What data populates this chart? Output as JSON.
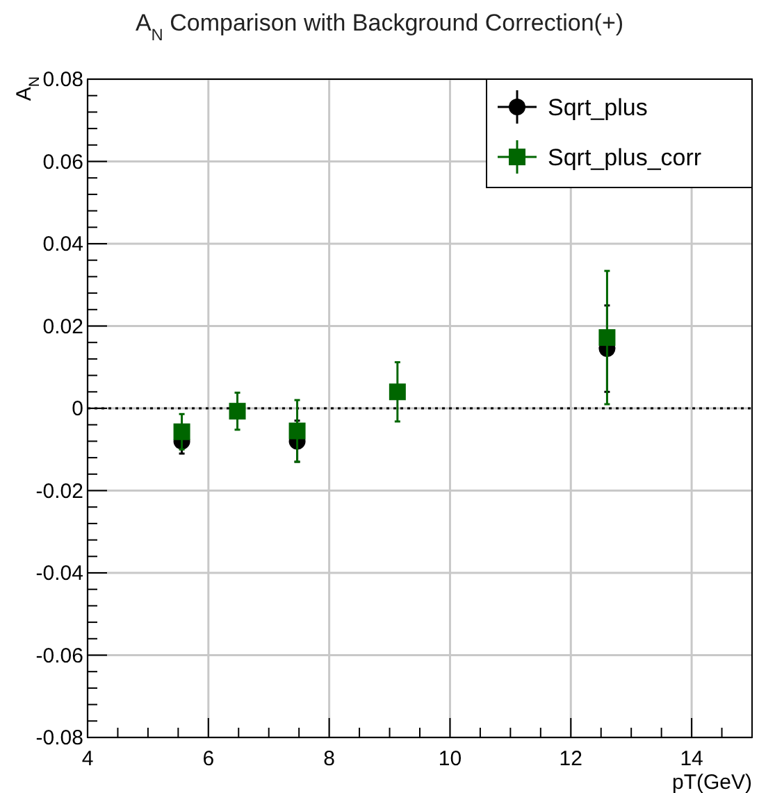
{
  "chart_data": {
    "type": "scatter",
    "title": "A$_{N}$ Comparison with Background Correction(+)",
    "xlabel": "pT(GeV)",
    "ylabel": "A$_{N}$",
    "x": [
      5.56,
      6.48,
      7.47,
      9.13,
      12.6
    ],
    "series": [
      {
        "name": "Sqrt_plus",
        "color": "#000000",
        "marker": "circle",
        "values": [
          -0.008,
          null,
          -0.008,
          null,
          0.0145
        ],
        "errors": [
          0.003,
          null,
          0.005,
          null,
          0.0105
        ]
      },
      {
        "name": "Sqrt_plus_corr",
        "color": "#006600",
        "marker": "square",
        "values": [
          -0.0057,
          -0.0007,
          -0.0055,
          0.004,
          0.0172
        ],
        "errors": [
          0.0043,
          0.0045,
          0.0075,
          0.0072,
          0.0162
        ]
      }
    ],
    "xlim": [
      4,
      15
    ],
    "ylim": [
      -0.08,
      0.08
    ],
    "xticks": [
      4,
      {
        "value": 4.5,
        "label": null
      },
      6,
      {
        "value": 5,
        "label": null
      },
      {
        "value": 5.5,
        "label": null
      },
      {
        "value": 6.5,
        "label": null
      },
      {
        "value": 7,
        "label": null
      },
      {
        "value": 7.5,
        "label": null
      },
      8,
      {
        "value": 8.5,
        "label": null
      },
      {
        "value": 9,
        "label": null
      },
      {
        "value": 9.5,
        "label": null
      },
      10,
      {
        "value": 10.5,
        "label": null
      },
      {
        "value": 11,
        "label": null
      },
      {
        "value": 11.5,
        "label": null
      },
      12,
      {
        "value": 12.5,
        "label": null
      },
      {
        "value": 13,
        "label": null
      },
      {
        "value": 13.5,
        "label": null
      },
      14,
      {
        "value": 14.5,
        "label": null
      }
    ],
    "yticks": [
      -0.08,
      -0.06,
      -0.04,
      -0.02,
      0,
      0.02,
      0.04,
      0.06,
      0.08,
      {
        "value": -0.076,
        "label": null
      },
      {
        "value": -0.072,
        "label": null
      },
      {
        "value": -0.068,
        "label": null
      },
      {
        "value": -0.064,
        "label": null
      },
      {
        "value": -0.056,
        "label": null
      },
      {
        "value": -0.052,
        "label": null
      },
      {
        "value": -0.048,
        "label": null
      },
      {
        "value": -0.044,
        "label": null
      },
      {
        "value": -0.036,
        "label": null
      },
      {
        "value": -0.032,
        "label": null
      },
      {
        "value": -0.028,
        "label": null
      },
      {
        "value": -0.024,
        "label": null
      },
      {
        "value": -0.016,
        "label": null
      },
      {
        "value": -0.012,
        "label": null
      },
      {
        "value": -0.008,
        "label": null
      },
      {
        "value": -0.004,
        "label": null
      },
      {
        "value": 0.004,
        "label": null
      },
      {
        "value": 0.008,
        "label": null
      },
      {
        "value": 0.012,
        "label": null
      },
      {
        "value": 0.016,
        "label": null
      },
      {
        "value": 0.024,
        "label": null
      },
      {
        "value": 0.028,
        "label": null
      },
      {
        "value": 0.032,
        "label": null
      },
      {
        "value": 0.036,
        "label": null
      },
      {
        "value": 0.044,
        "label": null
      },
      {
        "value": 0.048,
        "label": null
      },
      {
        "value": 0.052,
        "label": null
      },
      {
        "value": 0.056,
        "label": null
      },
      {
        "value": 0.064,
        "label": null
      },
      {
        "value": 0.068,
        "label": null
      },
      {
        "value": 0.072,
        "label": null
      },
      {
        "value": 0.076,
        "label": null
      }
    ],
    "grid": true,
    "legend": "top right",
    "ref_lines": [
      {
        "axis": "y",
        "value": 0,
        "line_style": "dotted",
        "color": "#000000"
      }
    ]
  }
}
